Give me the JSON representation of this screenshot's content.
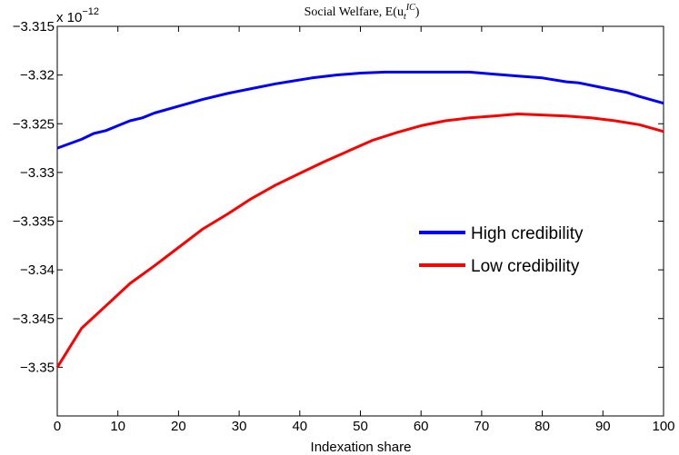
{
  "chart_data": {
    "type": "line",
    "title": "Social Welfare, E(u",
    "title_sup": "IC",
    "title_sub": "t",
    "title_end": ")",
    "xlabel": "Indexation share",
    "ylabel": "",
    "y_exponent_base": "x 10",
    "y_exponent_power": "−12",
    "xlim": [
      0,
      100
    ],
    "ylim": [
      -3.355,
      -3.315
    ],
    "xticks": [
      0,
      10,
      20,
      30,
      40,
      50,
      60,
      70,
      80,
      90,
      100
    ],
    "xtick_labels": [
      "0",
      "10",
      "20",
      "30",
      "40",
      "50",
      "60",
      "70",
      "80",
      "90",
      "100"
    ],
    "yticks": [
      -3.315,
      -3.32,
      -3.325,
      -3.33,
      -3.335,
      -3.34,
      -3.345,
      -3.35
    ],
    "ytick_labels": [
      "−3.315",
      "−3.32",
      "−3.325",
      "−3.33",
      "−3.335",
      "−3.34",
      "−3.345",
      "−3.35"
    ],
    "grid": false,
    "legend_position": "center-right",
    "series": [
      {
        "name": "High credibility",
        "color": "#0000ff",
        "x": [
          0,
          4,
          6,
          8,
          10,
          12,
          14,
          16,
          20,
          24,
          28,
          32,
          36,
          38,
          42,
          46,
          50,
          54,
          58,
          64,
          68,
          72,
          76,
          80,
          84,
          86,
          90,
          94,
          96,
          100
        ],
        "y": [
          -3.3275,
          -3.3266,
          -3.326,
          -3.3257,
          -3.3252,
          -3.3247,
          -3.3244,
          -3.3239,
          -3.3232,
          -3.3225,
          -3.3219,
          -3.3214,
          -3.3209,
          -3.3207,
          -3.3203,
          -3.32,
          -3.3198,
          -3.3197,
          -3.3197,
          -3.3197,
          -3.3197,
          -3.3199,
          -3.3201,
          -3.3203,
          -3.3207,
          -3.3208,
          -3.3213,
          -3.3218,
          -3.3222,
          -3.3229
        ]
      },
      {
        "name": "Low credibility",
        "color": "#ff0000",
        "x": [
          0,
          4,
          8,
          12,
          16,
          20,
          24,
          28,
          32,
          36,
          40,
          44,
          48,
          52,
          56,
          60,
          64,
          68,
          72,
          76,
          80,
          84,
          88,
          92,
          96,
          100
        ],
        "y": [
          -3.35,
          -3.346,
          -3.3437,
          -3.3414,
          -3.3396,
          -3.3377,
          -3.3358,
          -3.3343,
          -3.3327,
          -3.3313,
          -3.3301,
          -3.3289,
          -3.3278,
          -3.3267,
          -3.3259,
          -3.3252,
          -3.3247,
          -3.3244,
          -3.3242,
          -3.324,
          -3.3241,
          -3.3242,
          -3.3244,
          -3.3247,
          -3.3251,
          -3.3258
        ]
      }
    ]
  }
}
